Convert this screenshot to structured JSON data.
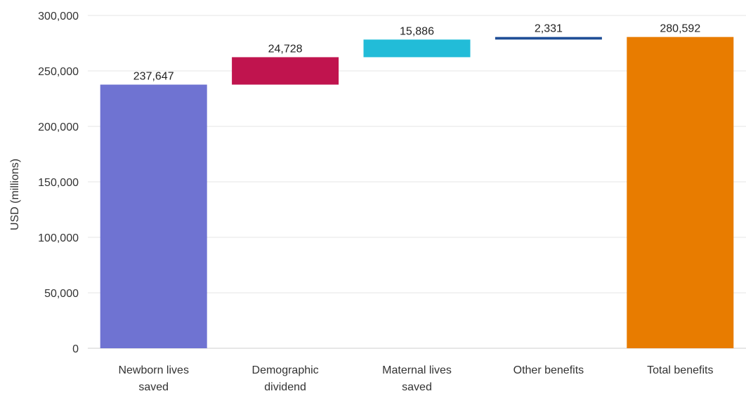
{
  "chart_data": {
    "type": "bar",
    "subtype": "waterfall",
    "title": "",
    "xlabel": "",
    "ylabel": "USD (millions)",
    "ylim": [
      0,
      300000
    ],
    "yticks": [
      0,
      50000,
      100000,
      150000,
      200000,
      250000,
      300000
    ],
    "ytick_labels": [
      "0",
      "50,000",
      "100,000",
      "150,000",
      "200,000",
      "250,000",
      "300,000"
    ],
    "grid": true,
    "legend": "none",
    "categories": [
      [
        "Newborn lives",
        "saved"
      ],
      [
        "Demographic",
        "dividend"
      ],
      [
        "Maternal lives",
        "saved"
      ],
      [
        "Other benefits"
      ],
      [
        "Total benefits"
      ]
    ],
    "values": [
      237647,
      24728,
      15886,
      2331,
      280592
    ],
    "value_labels": [
      "237,647",
      "24,728",
      "15,886",
      "2,331",
      "280,592"
    ],
    "bar_kinds": [
      "total",
      "increase",
      "increase",
      "increase",
      "total"
    ],
    "colors": [
      "#6f73d2",
      "#c0144e",
      "#22bcd8",
      "#1f4e96",
      "#e87c00"
    ]
  }
}
